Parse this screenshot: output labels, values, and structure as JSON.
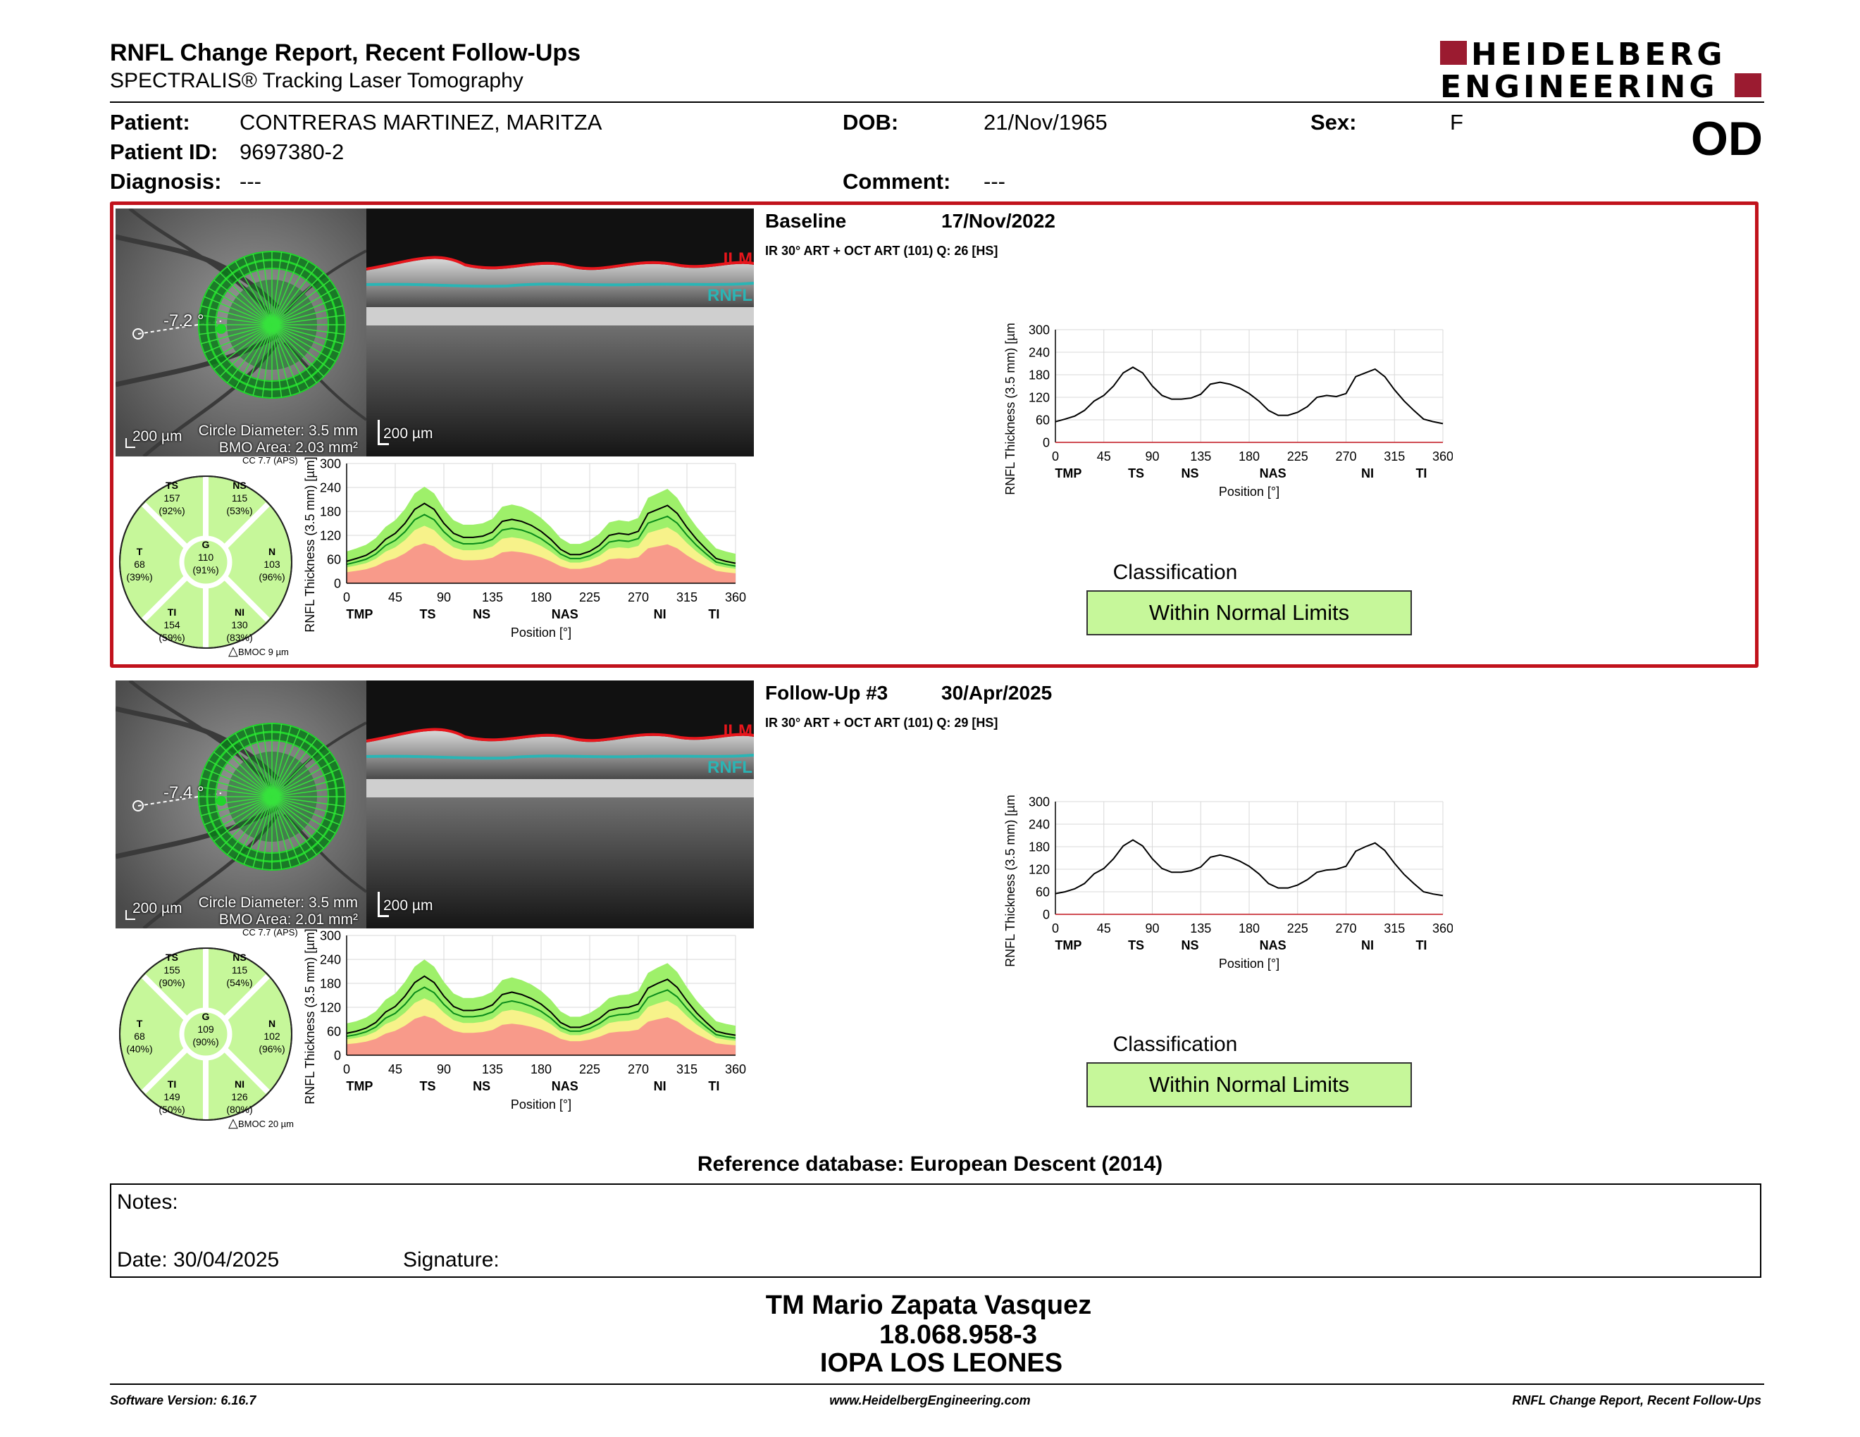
{
  "header": {
    "title": "RNFL Change Report, Recent Follow-Ups",
    "subtitle": "SPECTRALIS® Tracking Laser Tomography",
    "logo_line1": "HEIDELBERG",
    "logo_line2": "ENGINEERING"
  },
  "patient": {
    "patient_label": "Patient:",
    "patient_value": "CONTRERAS MARTINEZ, MARITZA",
    "dob_label": "DOB:",
    "dob_value": "21/Nov/1965",
    "sex_label": "Sex:",
    "sex_value": "F",
    "id_label": "Patient ID:",
    "id_value": "9697380-2",
    "diagnosis_label": "Diagnosis:",
    "diagnosis_value": "---",
    "comment_label": "Comment:",
    "comment_value": "---",
    "eye": "OD"
  },
  "scans": [
    {
      "title": "Baseline",
      "date": "17/Nov/2022",
      "protocol": "IR 30° ART + OCT ART (101) Q: 26 [HS]",
      "angle": "-7.2 °",
      "scale": "200 µm",
      "circle_diameter": "Circle Diameter: 3.5 mm",
      "bmo_area": "BMO Area: 2.03 mm²",
      "bscan_scale": "200 µm",
      "ilm": "ILM",
      "rnfl": "RNFL",
      "cc": "CC 7.7 (APS)",
      "bmoc": "BMOC 9 µm",
      "sectors": {
        "TS": {
          "label": "TS",
          "value": "157",
          "pct": "(92%)"
        },
        "NS": {
          "label": "NS",
          "value": "115",
          "pct": "(53%)"
        },
        "T": {
          "label": "T",
          "value": "68",
          "pct": "(39%)"
        },
        "G": {
          "label": "G",
          "value": "110",
          "pct": "(91%)"
        },
        "N": {
          "label": "N",
          "value": "103",
          "pct": "(96%)"
        },
        "TI": {
          "label": "TI",
          "value": "154",
          "pct": "(59%)"
        },
        "NI": {
          "label": "NI",
          "value": "130",
          "pct": "(83%)"
        }
      },
      "classification_label": "Classification",
      "classification": "Within Normal Limits",
      "chart_profile": [
        55,
        62,
        70,
        85,
        110,
        125,
        150,
        185,
        200,
        185,
        150,
        125,
        115,
        115,
        118,
        128,
        155,
        160,
        155,
        145,
        130,
        110,
        85,
        72,
        72,
        80,
        95,
        120,
        125,
        122,
        130,
        175,
        185,
        195,
        175,
        140,
        110,
        85,
        62,
        55,
        50
      ]
    },
    {
      "title": "Follow-Up #3",
      "date": "30/Apr/2025",
      "protocol": "IR 30° ART + OCT ART (101) Q: 29 [HS]",
      "angle": "-7.4 °",
      "scale": "200 µm",
      "circle_diameter": "Circle Diameter: 3.5 mm",
      "bmo_area": "BMO Area: 2.01 mm²",
      "bscan_scale": "200 µm",
      "ilm": "ILM",
      "rnfl": "RNFL",
      "cc": "CC 7.7 (APS)",
      "bmoc": "BMOC 20 µm",
      "sectors": {
        "TS": {
          "label": "TS",
          "value": "155",
          "pct": "(90%)"
        },
        "NS": {
          "label": "NS",
          "value": "115",
          "pct": "(54%)"
        },
        "T": {
          "label": "T",
          "value": "68",
          "pct": "(40%)"
        },
        "G": {
          "label": "G",
          "value": "109",
          "pct": "(90%)"
        },
        "N": {
          "label": "N",
          "value": "102",
          "pct": "(96%)"
        },
        "TI": {
          "label": "TI",
          "value": "149",
          "pct": "(50%)"
        },
        "NI": {
          "label": "NI",
          "value": "126",
          "pct": "(80%)"
        }
      },
      "classification_label": "Classification",
      "classification": "Within Normal Limits",
      "chart_profile": [
        55,
        60,
        68,
        82,
        108,
        122,
        148,
        182,
        198,
        182,
        148,
        122,
        112,
        112,
        116,
        126,
        152,
        158,
        152,
        142,
        128,
        108,
        82,
        70,
        70,
        78,
        92,
        112,
        118,
        120,
        128,
        168,
        180,
        190,
        170,
        136,
        106,
        82,
        60,
        54,
        50
      ]
    }
  ],
  "chart_data": [
    {
      "type": "line",
      "title": "",
      "xlabel": "Position [°]",
      "ylabel": "RNFL Thickness (3.5 mm) [µm]",
      "xticks": [
        0,
        45,
        90,
        135,
        180,
        225,
        270,
        315,
        360
      ],
      "yticks": [
        0,
        60,
        120,
        180,
        240,
        300
      ],
      "xlim": [
        0,
        360
      ],
      "ylim": [
        0,
        300
      ],
      "sector_labels": [
        "TMP",
        "TS",
        "NS",
        "NAS",
        "NI",
        "TI",
        "TMP"
      ],
      "x": [
        0,
        9,
        18,
        27,
        36,
        45,
        54,
        63,
        72,
        81,
        90,
        99,
        108,
        117,
        126,
        135,
        144,
        153,
        162,
        171,
        180,
        189,
        198,
        207,
        216,
        225,
        234,
        243,
        252,
        261,
        270,
        279,
        288,
        297,
        306,
        315,
        324,
        333,
        342,
        351,
        360
      ],
      "series": []
    }
  ],
  "reference_db": "Reference database: European Descent (2014)",
  "notes": {
    "label": "Notes:",
    "date_label": "Date: 30/04/2025",
    "signature_label": "Signature:"
  },
  "signature": {
    "name": "TM Mario Zapata Vasquez",
    "rut": "18.068.958-3",
    "clinic": "IOPA LOS LEONES"
  },
  "footer": {
    "software": "Software Version: 6.16.7",
    "website": "www.HeidelbergEngineering.com",
    "report": "RNFL Change Report, Recent Follow-Ups"
  },
  "colors": {
    "frame": "#c1121c",
    "logo": "#9b1b30",
    "normal": "#c6f79a",
    "green_band": "#9ef06a",
    "yellow_band": "#f7f28a",
    "red_band": "#f89a8a",
    "ilm": "#e8161c",
    "rnfl": "#2ab5b5"
  }
}
